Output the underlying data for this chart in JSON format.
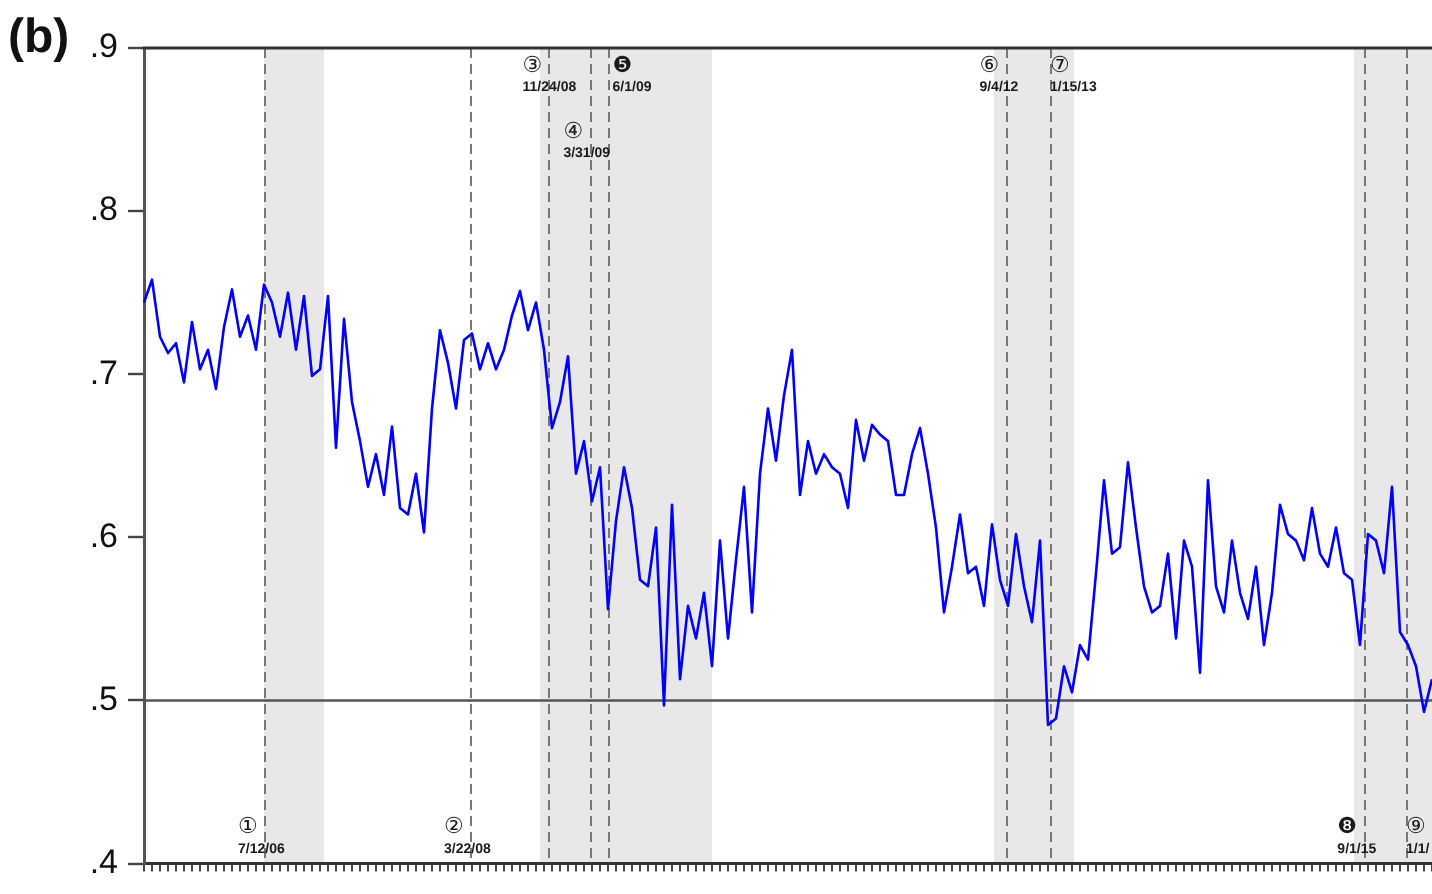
{
  "chart_data": {
    "type": "line",
    "title": "(b)",
    "categories": [
      null,
      null,
      null,
      null,
      null,
      null,
      null,
      null,
      null,
      null,
      null,
      null,
      null,
      null,
      null,
      null,
      null,
      null,
      null,
      null,
      null,
      null,
      null,
      null,
      null,
      null,
      null,
      null,
      null,
      null,
      null,
      null,
      null,
      null,
      null,
      null,
      null,
      null,
      null,
      null,
      null,
      null,
      null,
      null,
      null,
      null,
      null,
      null,
      null,
      null,
      null,
      null,
      null,
      null,
      null,
      null,
      null,
      null,
      null,
      null,
      null,
      null,
      null,
      null,
      null,
      null,
      null,
      null,
      null,
      null,
      null,
      null,
      null,
      null,
      null,
      null,
      null,
      null,
      null,
      null,
      null,
      null,
      null,
      null,
      null,
      null,
      null,
      null,
      null,
      null,
      null,
      null,
      null,
      null,
      null,
      null,
      null,
      null,
      null,
      null,
      null,
      null,
      null,
      null,
      null,
      null,
      null,
      null,
      null,
      null,
      null,
      null,
      null,
      null,
      null,
      null,
      null,
      null,
      null,
      null,
      null,
      null,
      null,
      null,
      null,
      null,
      null,
      null,
      null,
      null,
      null,
      null,
      null,
      null,
      null,
      null,
      null,
      null,
      null,
      null,
      null,
      null,
      null,
      null,
      null,
      null,
      null,
      null,
      null,
      null,
      null,
      null,
      null,
      null,
      null,
      null,
      null,
      null,
      null,
      null,
      null,
      null
    ],
    "values": [
      0.744,
      0.758,
      0.723,
      0.713,
      0.719,
      0.695,
      0.732,
      0.703,
      0.715,
      0.691,
      0.729,
      0.752,
      0.723,
      0.736,
      0.715,
      0.755,
      0.744,
      0.723,
      0.75,
      0.715,
      0.748,
      0.699,
      0.703,
      0.748,
      0.655,
      0.734,
      0.683,
      0.659,
      0.631,
      0.651,
      0.626,
      0.668,
      0.618,
      0.614,
      0.639,
      0.603,
      0.679,
      0.727,
      0.707,
      0.679,
      0.721,
      0.725,
      0.703,
      0.719,
      0.703,
      0.715,
      0.736,
      0.751,
      0.727,
      0.744,
      0.715,
      0.667,
      0.683,
      0.711,
      0.639,
      0.659,
      0.622,
      0.643,
      0.556,
      0.61,
      0.643,
      0.618,
      0.574,
      0.57,
      0.606,
      0.497,
      0.62,
      0.513,
      0.558,
      0.538,
      0.566,
      0.521,
      0.598,
      0.538,
      0.586,
      0.631,
      0.554,
      0.639,
      0.679,
      0.647,
      0.687,
      0.715,
      0.626,
      0.659,
      0.639,
      0.651,
      0.643,
      0.639,
      0.618,
      0.672,
      0.647,
      0.669,
      0.663,
      0.659,
      0.626,
      0.626,
      0.651,
      0.667,
      0.639,
      0.606,
      0.554,
      0.582,
      0.614,
      0.578,
      0.582,
      0.558,
      0.608,
      0.574,
      0.558,
      0.602,
      0.57,
      0.548,
      0.598,
      0.485,
      0.489,
      0.521,
      0.505,
      0.534,
      0.525,
      0.578,
      0.635,
      0.59,
      0.594,
      0.646,
      0.606,
      0.57,
      0.554,
      0.558,
      0.59,
      0.538,
      0.598,
      0.582,
      0.517,
      0.635,
      0.57,
      0.554,
      0.598,
      0.566,
      0.55,
      0.582,
      0.534,
      0.566,
      0.62,
      0.602,
      0.598,
      0.586,
      0.618,
      0.59,
      0.582,
      0.606,
      0.578,
      0.574,
      0.534,
      0.602,
      0.598,
      0.578,
      0.631,
      0.542,
      0.534,
      0.521,
      0.493,
      0.513
    ],
    "color": "#0000ff",
    "marker": "none",
    "tick_labels": "y",
    "ylim": [
      0.4,
      0.9
    ],
    "yticks": [
      {
        "value": 0.4,
        "label": ".4"
      },
      {
        "value": 0.5,
        "label": ".5"
      },
      {
        "value": 0.6,
        "label": ".6"
      },
      {
        "value": 0.7,
        "label": ".7"
      },
      {
        "value": 0.8,
        "label": ".8"
      },
      {
        "value": 0.9,
        "label": ".9"
      }
    ],
    "ref_lines": [
      {
        "axis": "y",
        "value": 0.5,
        "color": "#555555",
        "line_style": "solid"
      }
    ],
    "annotations": [
      "①\n7/12/06",
      "②\n3/22/08",
      "③\n11/24/08",
      "④\n3/31/09",
      "❺\n6/1/09",
      "⑥\n9/4/12",
      "⑦\n1/15/13",
      "❽\n9/1/15",
      "⑨\n1/1/"
    ]
  }
}
